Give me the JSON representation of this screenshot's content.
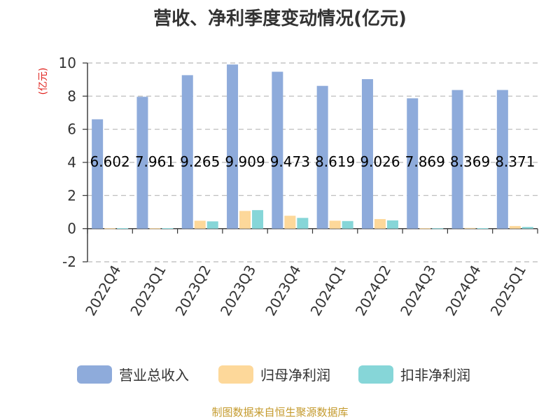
{
  "chart_data": {
    "type": "bar",
    "title": "营收、净利季度变动情况(亿元)",
    "ylabel": "(亿元)",
    "ylim": [
      -2,
      10
    ],
    "yticks": [
      -2,
      0,
      2,
      4,
      6,
      8,
      10
    ],
    "categories": [
      "2022Q4",
      "2023Q1",
      "2023Q2",
      "2023Q3",
      "2023Q4",
      "2024Q1",
      "2024Q2",
      "2024Q3",
      "2024Q4",
      "2025Q1"
    ],
    "series": [
      {
        "name": "营业总收入",
        "color": "#8eabdb",
        "values": [
          6.602,
          7.961,
          9.265,
          9.909,
          9.473,
          8.619,
          9.026,
          7.869,
          8.369,
          8.371
        ],
        "labels": [
          "6.602",
          "7.961",
          "9.265",
          "9.909",
          "9.473",
          "8.619",
          "9.026",
          "7.869",
          "8.369",
          "8.371"
        ]
      },
      {
        "name": "归母净利润",
        "color": "#fdd89a",
        "values": [
          0.02,
          0.02,
          0.48,
          1.07,
          0.78,
          0.48,
          0.58,
          0.02,
          0.04,
          0.16
        ]
      },
      {
        "name": "扣非净利润",
        "color": "#86d6d8",
        "values": [
          0.03,
          0.03,
          0.44,
          1.12,
          0.65,
          0.46,
          0.5,
          0.02,
          0.03,
          0.1
        ]
      }
    ],
    "grid": true,
    "legend_position": "bottom"
  },
  "source": "制图数据来自恒生聚源数据库"
}
